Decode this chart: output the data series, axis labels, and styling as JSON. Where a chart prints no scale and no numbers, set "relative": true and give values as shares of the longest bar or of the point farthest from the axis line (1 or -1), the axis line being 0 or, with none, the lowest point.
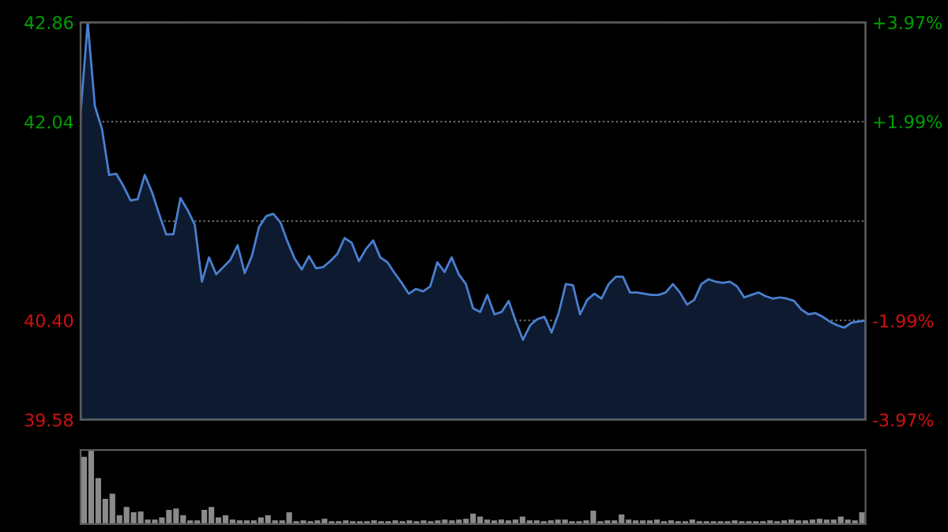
{
  "chart_data": [
    {
      "type": "area",
      "categories": [
        null,
        null,
        null,
        null,
        null,
        null,
        null,
        null,
        null,
        null,
        null,
        null,
        null,
        null,
        null,
        null,
        null,
        null,
        null,
        null,
        null,
        null,
        null,
        null,
        null,
        null,
        null,
        null,
        null,
        null,
        null,
        null,
        null,
        null,
        null,
        null,
        null,
        null,
        null,
        null,
        null,
        null,
        null,
        null,
        null,
        null,
        null,
        null,
        null,
        null,
        null,
        null,
        null,
        null,
        null,
        null,
        null,
        null,
        null,
        null,
        null,
        null,
        null,
        null,
        null,
        null,
        null,
        null,
        null,
        null,
        null,
        null,
        null,
        null,
        null,
        null,
        null,
        null,
        null,
        null,
        null,
        null,
        null,
        null,
        null,
        null,
        null,
        null,
        null,
        null,
        null,
        null,
        null,
        null,
        null,
        null,
        null,
        null,
        null,
        null,
        null,
        null,
        null,
        null,
        null,
        null,
        null,
        null,
        null,
        null,
        null
      ],
      "series": [
        {
          "color": "#4a7fd0",
          "values": [
            42.11,
            42.86,
            42.17,
            41.98,
            41.6,
            41.61,
            41.51,
            41.39,
            41.4,
            41.6,
            41.46,
            41.28,
            41.11,
            41.11,
            41.41,
            41.31,
            41.19,
            40.72,
            40.92,
            40.78,
            40.84,
            40.9,
            41.02,
            40.79,
            40.93,
            41.17,
            41.26,
            41.28,
            41.21,
            41.05,
            40.91,
            40.82,
            40.93,
            40.83,
            40.84,
            40.89,
            40.95,
            41.08,
            41.04,
            40.89,
            40.99,
            41.06,
            40.92,
            40.88,
            40.79,
            40.71,
            40.62,
            40.66,
            40.64,
            40.68,
            40.88,
            40.8,
            40.92,
            40.78,
            40.7,
            40.5,
            40.47,
            40.61,
            40.45,
            40.47,
            40.56,
            40.39,
            40.24,
            40.36,
            40.41,
            40.43,
            40.3,
            40.46,
            40.7,
            40.69,
            40.45,
            40.57,
            40.62,
            40.58,
            40.7,
            40.76,
            40.76,
            40.63,
            40.63,
            40.62,
            40.61,
            40.61,
            40.63,
            40.7,
            40.63,
            40.53,
            40.57,
            40.7,
            40.74,
            40.72,
            40.71,
            40.72,
            40.68,
            40.59,
            40.61,
            40.63,
            40.6,
            40.58,
            40.59,
            40.58,
            40.56,
            40.49,
            40.45,
            40.46,
            40.43,
            40.39,
            40.36,
            40.34,
            40.38,
            40.39,
            40.4
          ]
        }
      ],
      "ylim": [
        39.58,
        42.86
      ],
      "yticks": [
        39.58,
        {
          "value": 40.4,
          "label": "40.40"
        },
        {
          "value": 41.22,
          "label": null
        },
        42.04,
        42.86
      ],
      "y2lim": [
        -3.97,
        3.97
      ],
      "y2ticks": [
        {
          "value": -3.97,
          "label": "-3.97%"
        },
        {
          "value": -1.99,
          "label": "-1.99%"
        },
        {
          "value": 1.99,
          "label": "+1.99%"
        },
        {
          "value": 3.97,
          "label": "+3.97%"
        }
      ],
      "tick_labels": "y",
      "grid": "y"
    },
    {
      "type": "bar",
      "relative": true,
      "tick_labels": false,
      "categories": [
        null,
        null,
        null,
        null,
        null,
        null,
        null,
        null,
        null,
        null,
        null,
        null,
        null,
        null,
        null,
        null,
        null,
        null,
        null,
        null,
        null,
        null,
        null,
        null,
        null,
        null,
        null,
        null,
        null,
        null,
        null,
        null,
        null,
        null,
        null,
        null,
        null,
        null,
        null,
        null,
        null,
        null,
        null,
        null,
        null,
        null,
        null,
        null,
        null,
        null,
        null,
        null,
        null,
        null,
        null,
        null,
        null,
        null,
        null,
        null,
        null,
        null,
        null,
        null,
        null,
        null,
        null,
        null,
        null,
        null,
        null,
        null,
        null,
        null,
        null,
        null,
        null,
        null,
        null,
        null,
        null,
        null,
        null,
        null,
        null,
        null,
        null,
        null,
        null,
        null,
        null,
        null,
        null,
        null,
        null,
        null,
        null,
        null,
        null,
        null,
        null,
        null,
        null,
        null,
        null,
        null,
        null,
        null,
        null,
        null,
        null
      ],
      "series": [
        {
          "color": "#8a8a8a",
          "values": [
            0.91,
            1.0,
            0.62,
            0.34,
            0.41,
            0.12,
            0.23,
            0.16,
            0.17,
            0.06,
            0.06,
            0.09,
            0.19,
            0.21,
            0.12,
            0.05,
            0.05,
            0.19,
            0.23,
            0.09,
            0.12,
            0.06,
            0.05,
            0.05,
            0.05,
            0.09,
            0.12,
            0.05,
            0.05,
            0.16,
            0.04,
            0.05,
            0.04,
            0.05,
            0.07,
            0.04,
            0.04,
            0.05,
            0.04,
            0.04,
            0.04,
            0.05,
            0.04,
            0.04,
            0.05,
            0.04,
            0.05,
            0.04,
            0.05,
            0.04,
            0.05,
            0.06,
            0.05,
            0.06,
            0.07,
            0.14,
            0.1,
            0.06,
            0.05,
            0.06,
            0.05,
            0.06,
            0.1,
            0.05,
            0.05,
            0.04,
            0.05,
            0.06,
            0.06,
            0.04,
            0.04,
            0.05,
            0.18,
            0.04,
            0.05,
            0.05,
            0.13,
            0.06,
            0.05,
            0.05,
            0.05,
            0.06,
            0.04,
            0.05,
            0.04,
            0.04,
            0.06,
            0.04,
            0.04,
            0.04,
            0.04,
            0.04,
            0.05,
            0.04,
            0.04,
            0.04,
            0.04,
            0.05,
            0.04,
            0.05,
            0.06,
            0.05,
            0.05,
            0.06,
            0.07,
            0.06,
            0.06,
            0.1,
            0.06,
            0.05,
            0.16
          ]
        }
      ]
    }
  ]
}
